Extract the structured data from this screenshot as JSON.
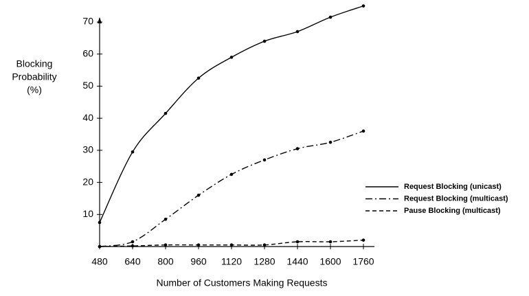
{
  "chart_data": {
    "type": "line",
    "x_label": "Number of Customers Making Requests",
    "y_label": [
      "Blocking",
      "Probability",
      "(%)"
    ],
    "x": [
      480,
      640,
      800,
      960,
      1120,
      1280,
      1440,
      1600,
      1760
    ],
    "xlim": [
      480,
      1760
    ],
    "xticks": [
      480,
      640,
      800,
      960,
      1120,
      1280,
      1440,
      1600,
      1760
    ],
    "ylim": [
      0,
      70
    ],
    "yticks": [
      10,
      20,
      30,
      40,
      50,
      60,
      70
    ],
    "legend": "right",
    "series": [
      {
        "name": "Request Blocking (unicast)",
        "color": "#000000",
        "dash": "solid",
        "values": [
          7.5,
          29.5,
          41.5,
          52.5,
          59,
          64,
          67,
          71.5,
          75
        ]
      },
      {
        "name": "Request Blocking (multicast)",
        "color": "#000000",
        "dash": "dashdot",
        "values": [
          0,
          1.5,
          8.5,
          16,
          22.5,
          27,
          30.5,
          32.5,
          36
        ]
      },
      {
        "name": "Pause Blocking (multicast)",
        "color": "#000000",
        "dash": "dashed",
        "values": [
          0,
          0.2,
          0.5,
          0.5,
          0.5,
          0.5,
          1.5,
          1.5,
          2
        ]
      }
    ]
  }
}
